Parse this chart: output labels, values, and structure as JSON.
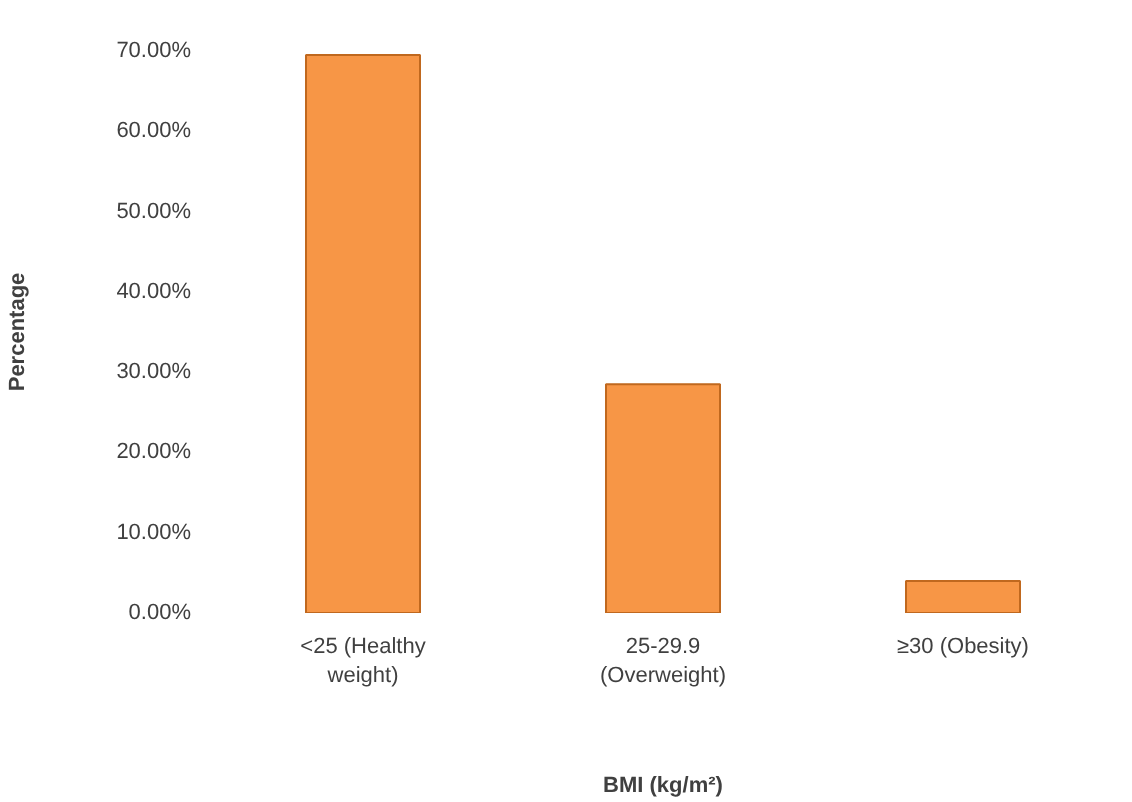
{
  "chart_data": {
    "type": "bar",
    "xlabel": "BMI (kg/m²)",
    "ylabel": "Percentage",
    "categories": [
      "<25 (Healthy\nweight)",
      "25-29.9\n(Overweight)",
      "≥30 (Obesity)"
    ],
    "values": [
      69.5,
      28.5,
      4.0
    ],
    "color": "#f79646",
    "ylim": [
      0,
      70
    ],
    "yticks": [
      {
        "value": 0,
        "label": "0.00%"
      },
      {
        "value": 10,
        "label": "10.00%"
      },
      {
        "value": 20,
        "label": "20.00%"
      },
      {
        "value": 30,
        "label": "30.00%"
      },
      {
        "value": 40,
        "label": "40.00%"
      },
      {
        "value": 50,
        "label": "50.00%"
      },
      {
        "value": 60,
        "label": "60.00%"
      },
      {
        "value": 70,
        "label": "70.00%"
      }
    ],
    "grid": false
  }
}
